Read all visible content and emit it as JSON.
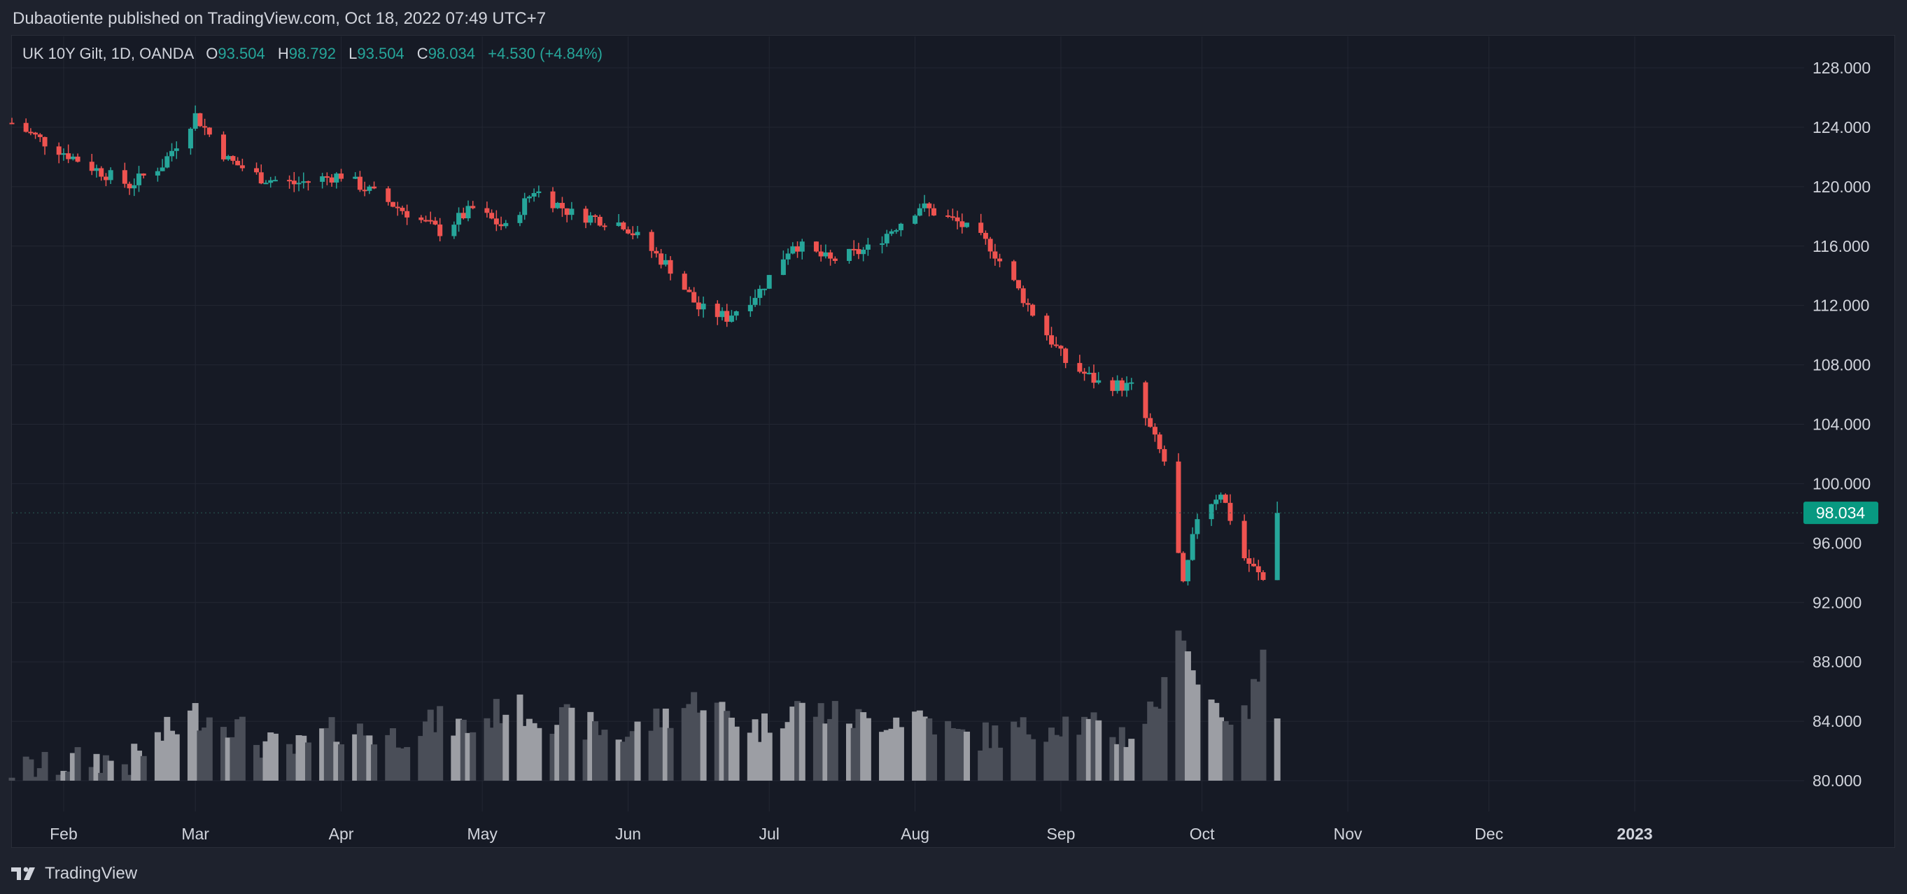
{
  "header": {
    "published": "Dubaotiente published on TradingView.com, Oct 18, 2022 07:49 UTC+7"
  },
  "legend": {
    "symbol": "UK 10Y Gilt, 1D, OANDA",
    "o_label": "O",
    "o_value": "93.504",
    "h_label": "H",
    "h_value": "98.792",
    "l_label": "L",
    "l_value": "93.504",
    "c_label": "C",
    "c_value": "98.034",
    "change": "+4.530 (+4.84%)"
  },
  "footer": {
    "brand": "TradingView"
  },
  "colors": {
    "up": "#26a69a",
    "down": "#ef5350",
    "vol_dark": "#4a4e58",
    "vol_light": "#9c9ea4",
    "grid": "#232733",
    "axis_text": "#d1d4dc",
    "price_tag": "#089981"
  },
  "chart_data": {
    "type": "candlestick",
    "y_axis": {
      "ticks": [
        "128.000",
        "124.000",
        "120.000",
        "116.000",
        "112.000",
        "108.000",
        "104.000",
        "100.000",
        "96.000",
        "92.000",
        "88.000",
        "84.000",
        "80.000"
      ],
      "tick_values": [
        128,
        124,
        120,
        116,
        112,
        108,
        104,
        100,
        96,
        92,
        88,
        84,
        80
      ],
      "range": [
        77.5,
        129.5
      ]
    },
    "x_axis": {
      "labels": [
        "Feb",
        "Mar",
        "Apr",
        "May",
        "Jun",
        "Jul",
        "Aug",
        "Sep",
        "Oct",
        "Nov",
        "Dec",
        "2023"
      ],
      "label_dates": [
        "2022-02-01",
        "2022-03-01",
        "2022-04-01",
        "2022-05-01",
        "2022-06-01",
        "2022-07-01",
        "2022-08-01",
        "2022-09-01",
        "2022-10-01",
        "2022-11-01",
        "2022-12-01",
        "2023-01-01"
      ],
      "range": [
        "2022-01-21",
        "2023-02-06"
      ],
      "bold": [
        "2023"
      ]
    },
    "last_price": "98.034",
    "anchors": [
      {
        "date": "2022-01-21",
        "close": 124.3,
        "volume": 80.7
      },
      {
        "date": "2022-01-28",
        "close": 123.0,
        "volume": 80.9
      },
      {
        "date": "2022-02-07",
        "close": 121.3,
        "volume": 81.5
      },
      {
        "date": "2022-02-15",
        "close": 120.1,
        "volume": 81.2
      },
      {
        "date": "2022-02-22",
        "close": 121.5,
        "volume": 83.0
      },
      {
        "date": "2022-03-01",
        "close": 124.8,
        "volume": 84.5
      },
      {
        "date": "2022-03-08",
        "close": 121.8,
        "volume": 84.0
      },
      {
        "date": "2022-03-15",
        "close": 120.6,
        "volume": 82.5
      },
      {
        "date": "2022-03-22",
        "close": 120.2,
        "volume": 82.0
      },
      {
        "date": "2022-04-01",
        "close": 120.8,
        "volume": 83.5
      },
      {
        "date": "2022-04-12",
        "close": 118.8,
        "volume": 83.0
      },
      {
        "date": "2022-04-22",
        "close": 117.0,
        "volume": 84.0
      },
      {
        "date": "2022-04-29",
        "close": 118.5,
        "volume": 83.5
      },
      {
        "date": "2022-05-06",
        "close": 117.2,
        "volume": 85.0
      },
      {
        "date": "2022-05-12",
        "close": 119.8,
        "volume": 84.5
      },
      {
        "date": "2022-05-20",
        "close": 118.2,
        "volume": 84.0
      },
      {
        "date": "2022-05-31",
        "close": 117.5,
        "volume": 83.0
      },
      {
        "date": "2022-06-10",
        "close": 114.5,
        "volume": 84.5
      },
      {
        "date": "2022-06-16",
        "close": 111.8,
        "volume": 85.5
      },
      {
        "date": "2022-06-22",
        "close": 111.2,
        "volume": 84.5
      },
      {
        "date": "2022-06-29",
        "close": 113.0,
        "volume": 83.5
      },
      {
        "date": "2022-07-06",
        "close": 116.2,
        "volume": 85.0
      },
      {
        "date": "2022-07-14",
        "close": 115.0,
        "volume": 84.5
      },
      {
        "date": "2022-07-22",
        "close": 115.8,
        "volume": 84.0
      },
      {
        "date": "2022-08-02",
        "close": 118.7,
        "volume": 84.5
      },
      {
        "date": "2022-08-10",
        "close": 117.6,
        "volume": 83.0
      },
      {
        "date": "2022-08-17",
        "close": 116.0,
        "volume": 83.0
      },
      {
        "date": "2022-08-26",
        "close": 111.5,
        "volume": 83.5
      },
      {
        "date": "2022-09-02",
        "close": 108.2,
        "volume": 84.0
      },
      {
        "date": "2022-09-09",
        "close": 106.8,
        "volume": 83.5
      },
      {
        "date": "2022-09-16",
        "close": 106.5,
        "volume": 83.0
      },
      {
        "date": "2022-09-23",
        "close": 101.5,
        "volume": 86.0
      },
      {
        "date": "2022-09-27",
        "close": 93.0,
        "volume": 90.5
      },
      {
        "date": "2022-09-30",
        "close": 97.8,
        "volume": 86.5
      },
      {
        "date": "2022-10-05",
        "close": 99.5,
        "volume": 84.8
      },
      {
        "date": "2022-10-10",
        "close": 95.0,
        "volume": 84.0
      },
      {
        "date": "2022-10-14",
        "close": 93.5,
        "volume": 88.0
      },
      {
        "date": "2022-10-17",
        "close": 98.034,
        "volume": 84.8
      }
    ]
  }
}
